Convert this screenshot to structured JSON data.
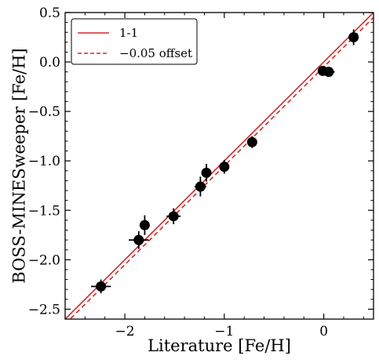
{
  "chart_data": {
    "type": "scatter",
    "title": "",
    "xlabel": "Literature [Fe/H]",
    "ylabel": "BOSS-MINESweeper [Fe/H]",
    "xlim": [
      -2.6,
      0.5
    ],
    "ylim": [
      -2.6,
      0.5
    ],
    "x_ticks": [
      -2,
      -1,
      0
    ],
    "x_tick_labels": [
      "−2",
      "−1",
      "0"
    ],
    "y_ticks": [
      0.5,
      0.0,
      -0.5,
      -1.0,
      -1.5,
      -2.0,
      -2.5
    ],
    "y_tick_labels": [
      "0.5",
      "0.0",
      "−0.5",
      "−1.0",
      "−1.5",
      "−2.0",
      "−2.5"
    ],
    "grid": false,
    "legend_position": "top-left",
    "lines": [
      {
        "name": "1-1",
        "slope": 1,
        "offset": 0.0,
        "style": "solid",
        "color": "#d62728"
      },
      {
        "name": "−0.05 offset",
        "slope": 1,
        "offset": -0.05,
        "style": "dashed",
        "color": "#d62728"
      }
    ],
    "points": [
      {
        "x": -2.24,
        "y": -2.27,
        "xerr": 0.1,
        "yerr": 0.07
      },
      {
        "x": -1.86,
        "y": -1.8,
        "xerr": 0.1,
        "yerr": 0.09
      },
      {
        "x": -1.8,
        "y": -1.65,
        "xerr": 0.03,
        "yerr": 0.1
      },
      {
        "x": -1.51,
        "y": -1.56,
        "xerr": 0.07,
        "yerr": 0.08
      },
      {
        "x": -1.24,
        "y": -1.26,
        "xerr": 0.06,
        "yerr": 0.1
      },
      {
        "x": -1.18,
        "y": -1.12,
        "xerr": 0.02,
        "yerr": 0.09
      },
      {
        "x": -1.0,
        "y": -1.06,
        "xerr": 0.03,
        "yerr": 0.07
      },
      {
        "x": -0.72,
        "y": -0.81,
        "xerr": 0.05,
        "yerr": 0.06
      },
      {
        "x": -0.01,
        "y": -0.09,
        "xerr": 0.02,
        "yerr": 0.03
      },
      {
        "x": 0.05,
        "y": -0.1,
        "xerr": 0.06,
        "yerr": 0.05
      },
      {
        "x": 0.3,
        "y": 0.25,
        "xerr": 0.02,
        "yerr": 0.08
      }
    ]
  }
}
